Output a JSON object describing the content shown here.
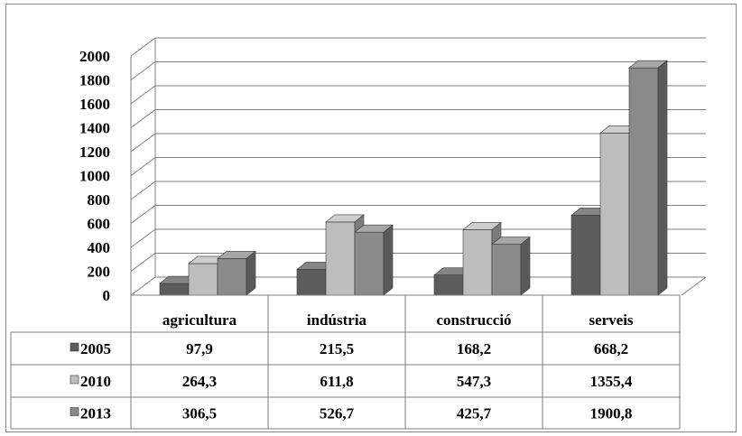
{
  "chart_data": {
    "type": "bar",
    "title": "",
    "xlabel": "",
    "ylabel": "",
    "categories": [
      "agricultura",
      "indústria",
      "construcció",
      "serveis"
    ],
    "series": [
      {
        "name": "2005",
        "values": [
          97.9,
          215.5,
          168.2,
          668.2
        ],
        "labels": [
          "97,9",
          "215,5",
          "168,2",
          "668,2"
        ],
        "color": "#5c5c5c"
      },
      {
        "name": "2010",
        "values": [
          264.3,
          611.8,
          547.3,
          1355.4
        ],
        "labels": [
          "264,3",
          "611,8",
          "547,3",
          "1355,4"
        ],
        "color": "#bdbdbd"
      },
      {
        "name": "2013",
        "values": [
          306.5,
          526.7,
          425.7,
          1900.8
        ],
        "labels": [
          "306,5",
          "526,7",
          "425,7",
          "1900,8"
        ],
        "color": "#8a8a8a"
      }
    ],
    "ylim": [
      0,
      2000
    ],
    "yticks": [
      0,
      200,
      400,
      600,
      800,
      1000,
      1200,
      1400,
      1600,
      1800,
      2000
    ],
    "grid": true,
    "style": "3d-clustered-columns",
    "legend": "data-table-below"
  }
}
